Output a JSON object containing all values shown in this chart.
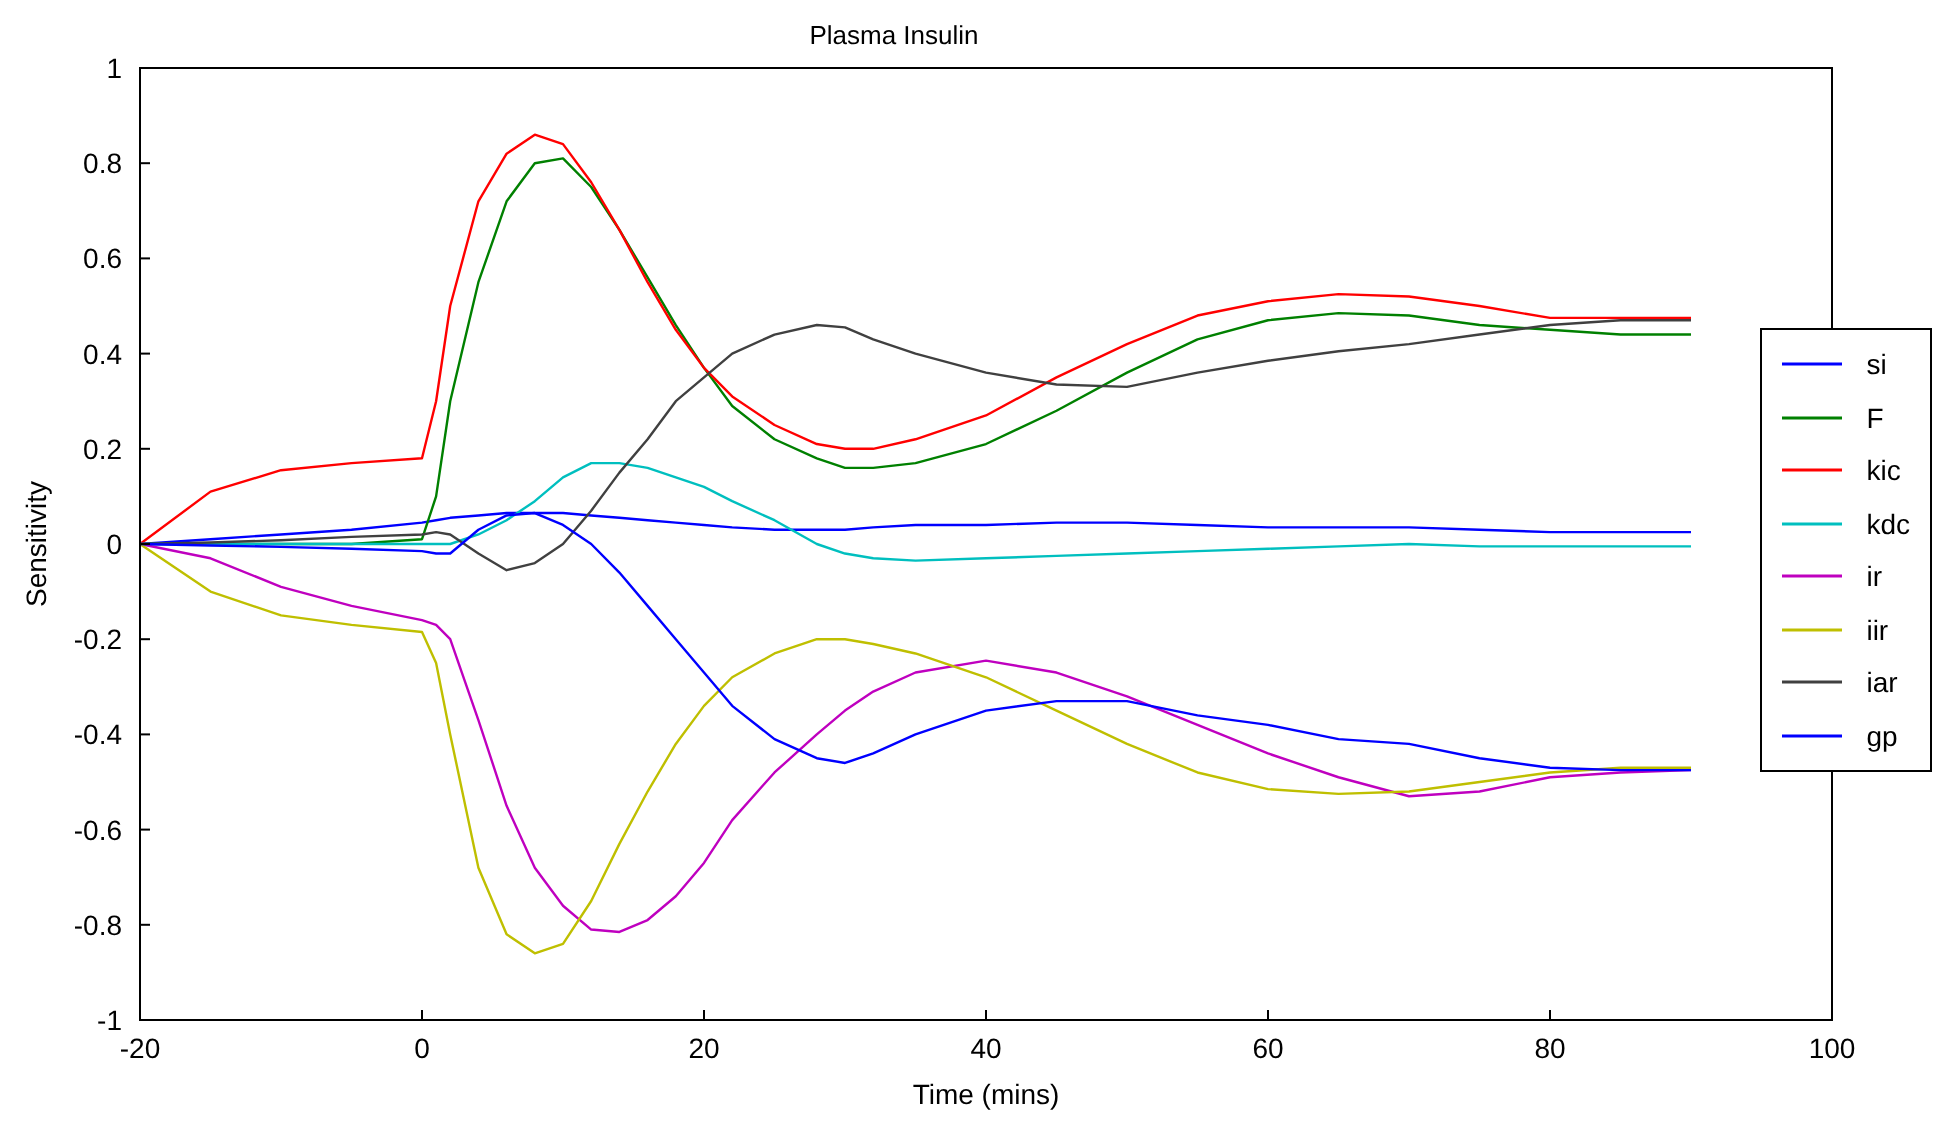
{
  "chart_data": {
    "type": "line",
    "title": "Plasma Insulin",
    "xlabel": "Time (mins)",
    "ylabel": "Sensitivity",
    "x": [
      -20,
      -15,
      -10,
      -5,
      0,
      1,
      2,
      4,
      6,
      8,
      10,
      12,
      14,
      16,
      18,
      20,
      22,
      25,
      28,
      30,
      32,
      35,
      40,
      45,
      50,
      55,
      60,
      65,
      70,
      75,
      80,
      85,
      90
    ],
    "series": [
      {
        "name": "si",
        "color": "#0000ff",
        "values": [
          0,
          0.01,
          0.02,
          0.03,
          0.045,
          0.05,
          0.055,
          0.06,
          0.065,
          0.065,
          0.065,
          0.06,
          0.055,
          0.05,
          0.045,
          0.04,
          0.035,
          0.03,
          0.03,
          0.03,
          0.035,
          0.04,
          0.04,
          0.045,
          0.045,
          0.04,
          0.035,
          0.035,
          0.035,
          0.03,
          0.025,
          0.025,
          0.025
        ]
      },
      {
        "name": "F",
        "color": "#008000",
        "values": [
          0,
          0,
          0,
          0,
          0.01,
          0.1,
          0.3,
          0.55,
          0.72,
          0.8,
          0.81,
          0.75,
          0.66,
          0.56,
          0.46,
          0.37,
          0.29,
          0.22,
          0.18,
          0.16,
          0.16,
          0.17,
          0.21,
          0.28,
          0.36,
          0.43,
          0.47,
          0.485,
          0.48,
          0.46,
          0.45,
          0.44,
          0.44
        ]
      },
      {
        "name": "kic",
        "color": "#ff0000",
        "values": [
          0,
          0.11,
          0.155,
          0.17,
          0.18,
          0.3,
          0.5,
          0.72,
          0.82,
          0.86,
          0.84,
          0.76,
          0.66,
          0.55,
          0.45,
          0.37,
          0.31,
          0.25,
          0.21,
          0.2,
          0.2,
          0.22,
          0.27,
          0.35,
          0.42,
          0.48,
          0.51,
          0.525,
          0.52,
          0.5,
          0.475,
          0.475,
          0.475
        ]
      },
      {
        "name": "kdc",
        "color": "#00bfbf",
        "values": [
          0,
          0,
          0,
          0,
          0,
          0,
          0,
          0.02,
          0.05,
          0.09,
          0.14,
          0.17,
          0.17,
          0.16,
          0.14,
          0.12,
          0.09,
          0.05,
          0,
          -0.02,
          -0.03,
          -0.035,
          -0.03,
          -0.025,
          -0.02,
          -0.015,
          -0.01,
          -0.005,
          0,
          -0.005,
          -0.005,
          -0.005,
          -0.005
        ]
      },
      {
        "name": "ir",
        "color": "#bf00bf",
        "values": [
          0,
          -0.03,
          -0.09,
          -0.13,
          -0.16,
          -0.17,
          -0.2,
          -0.37,
          -0.55,
          -0.68,
          -0.76,
          -0.81,
          -0.815,
          -0.79,
          -0.74,
          -0.67,
          -0.58,
          -0.48,
          -0.4,
          -0.35,
          -0.31,
          -0.27,
          -0.245,
          -0.27,
          -0.32,
          -0.38,
          -0.44,
          -0.49,
          -0.53,
          -0.52,
          -0.49,
          -0.48,
          -0.475
        ]
      },
      {
        "name": "iir",
        "color": "#bfbf00",
        "values": [
          0,
          -0.1,
          -0.15,
          -0.17,
          -0.185,
          -0.25,
          -0.4,
          -0.68,
          -0.82,
          -0.86,
          -0.84,
          -0.75,
          -0.63,
          -0.52,
          -0.42,
          -0.34,
          -0.28,
          -0.23,
          -0.2,
          -0.2,
          -0.21,
          -0.23,
          -0.28,
          -0.35,
          -0.42,
          -0.48,
          -0.515,
          -0.525,
          -0.52,
          -0.5,
          -0.48,
          -0.47,
          -0.47
        ]
      },
      {
        "name": "iar",
        "color": "#404040",
        "values": [
          0,
          0.003,
          0.008,
          0.015,
          0.02,
          0.025,
          0.02,
          -0.02,
          -0.055,
          -0.04,
          0,
          0.07,
          0.15,
          0.22,
          0.3,
          0.35,
          0.4,
          0.44,
          0.46,
          0.455,
          0.43,
          0.4,
          0.36,
          0.335,
          0.33,
          0.36,
          0.385,
          0.405,
          0.42,
          0.44,
          0.46,
          0.47,
          0.47
        ]
      },
      {
        "name": "gp",
        "color": "#0000ff",
        "values": [
          0,
          -0.003,
          -0.006,
          -0.01,
          -0.015,
          -0.02,
          -0.02,
          0.03,
          0.06,
          0.065,
          0.04,
          0,
          -0.06,
          -0.13,
          -0.2,
          -0.27,
          -0.34,
          -0.41,
          -0.45,
          -0.46,
          -0.44,
          -0.4,
          -0.35,
          -0.33,
          -0.33,
          -0.36,
          -0.38,
          -0.41,
          -0.42,
          -0.45,
          -0.47,
          -0.475,
          -0.475
        ]
      }
    ],
    "xlim": [
      -20,
      100
    ],
    "xticks": [
      -20,
      0,
      20,
      40,
      60,
      80,
      100
    ],
    "ylim": [
      -1,
      1
    ],
    "yticks": [
      -1,
      -0.8,
      -0.6,
      -0.4,
      -0.2,
      0,
      0.2,
      0.4,
      0.6,
      0.8,
      1
    ],
    "grid": false,
    "legend": "right",
    "marker": "none",
    "line_style": "solid"
  }
}
